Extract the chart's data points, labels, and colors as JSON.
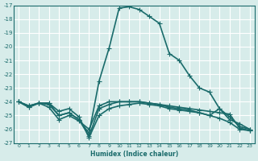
{
  "xlabel": "Humidex (Indice chaleur)",
  "ylabel": "",
  "bg_color": "#d7ecea",
  "grid_color": "#ffffff",
  "line_color": "#1a6b6b",
  "xlim": [
    -0.5,
    23.5
  ],
  "ylim": [
    -27,
    -17
  ],
  "xticks": [
    0,
    1,
    2,
    3,
    4,
    5,
    6,
    7,
    8,
    9,
    10,
    11,
    12,
    13,
    14,
    15,
    16,
    17,
    18,
    19,
    20,
    21,
    22,
    23
  ],
  "yticks": [
    -17,
    -18,
    -19,
    -20,
    -21,
    -22,
    -23,
    -24,
    -25,
    -26,
    -27
  ],
  "lines": [
    {
      "x": [
        0,
        1,
        2,
        3,
        4,
        5,
        6,
        7,
        8,
        9,
        10,
        11,
        12,
        13,
        14,
        15,
        16,
        17,
        18,
        19,
        20,
        21,
        22,
        23
      ],
      "y": [
        -24.0,
        -24.4,
        -24.1,
        -24.1,
        -25.0,
        -24.8,
        -25.3,
        -26.3,
        -22.5,
        -20.1,
        -17.2,
        -17.1,
        -17.3,
        -17.8,
        -18.3,
        -20.5,
        -21.0,
        -22.1,
        -23.0,
        -23.3,
        -24.5,
        -25.1,
        -25.8,
        -26.0
      ]
    },
    {
      "x": [
        0,
        1,
        2,
        3,
        4,
        5,
        6,
        7,
        8,
        9,
        10,
        11,
        12,
        13,
        14,
        15,
        16,
        17,
        18,
        19,
        20,
        21,
        22,
        23
      ],
      "y": [
        -24.0,
        -24.4,
        -24.1,
        -24.4,
        -25.3,
        -25.0,
        -25.4,
        -26.0,
        -24.3,
        -24.0,
        -24.0,
        -24.0,
        -24.0,
        -24.1,
        -24.2,
        -24.3,
        -24.4,
        -24.5,
        -24.6,
        -24.7,
        -24.8,
        -24.9,
        -25.9,
        -26.1
      ]
    },
    {
      "x": [
        0,
        1,
        2,
        3,
        4,
        5,
        6,
        7,
        8,
        9,
        10,
        11,
        12,
        13,
        14,
        15,
        16,
        17,
        18,
        19,
        20,
        21,
        22,
        23
      ],
      "y": [
        -24.0,
        -24.3,
        -24.1,
        -24.1,
        -24.7,
        -24.5,
        -25.1,
        -26.6,
        -25.0,
        -24.5,
        -24.3,
        -24.2,
        -24.1,
        -24.2,
        -24.3,
        -24.5,
        -24.6,
        -24.7,
        -24.8,
        -25.0,
        -25.2,
        -25.5,
        -26.0,
        -26.1
      ]
    },
    {
      "x": [
        0,
        1,
        2,
        3,
        4,
        5,
        6,
        7,
        8,
        9,
        10,
        11,
        12,
        13,
        14,
        15,
        16,
        17,
        18,
        19,
        20,
        21,
        22,
        23
      ],
      "y": [
        -24.0,
        -24.3,
        -24.1,
        -24.2,
        -25.0,
        -24.8,
        -25.3,
        -26.5,
        -24.5,
        -24.2,
        -24.0,
        -24.0,
        -24.0,
        -24.1,
        -24.2,
        -24.4,
        -24.5,
        -24.6,
        -24.8,
        -25.0,
        -24.5,
        -25.3,
        -25.6,
        -26.0
      ]
    }
  ],
  "marker": "+",
  "markersize": 4,
  "linewidth": 1.2
}
